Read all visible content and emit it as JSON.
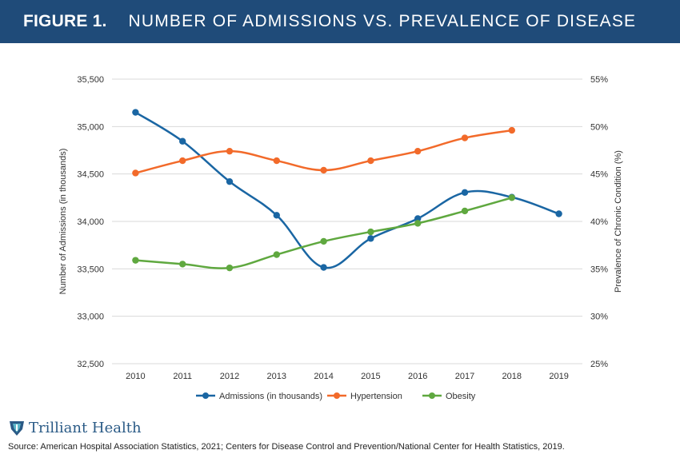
{
  "header": {
    "figure_label": "FIGURE 1.",
    "title": "NUMBER OF ADMISSIONS VS. PREVALENCE OF DISEASE"
  },
  "colors": {
    "header_bg": "#1f4b79",
    "admissions": "#1a66a3",
    "hypertension": "#f26a2a",
    "obesity": "#5fa83f",
    "logo": "#2a5a86"
  },
  "chart_data": {
    "type": "line",
    "title": "NUMBER OF ADMISSIONS VS. PREVALENCE OF DISEASE",
    "x": [
      "2010",
      "2011",
      "2012",
      "2013",
      "2014",
      "2015",
      "2016",
      "2017",
      "2018",
      "2019"
    ],
    "y_left": {
      "label": "Number of Admissions (in thousands)",
      "range": [
        32500,
        35500
      ],
      "ticks": [
        "32,500",
        "33,000",
        "33,500",
        "34,000",
        "34,500",
        "35,000",
        "35,500"
      ]
    },
    "y_right": {
      "label": "Prevalence of Chronic Condition (%)",
      "range": [
        25,
        55
      ],
      "ticks": [
        "25%",
        "30%",
        "35%",
        "40%",
        "45%",
        "50%",
        "55%"
      ]
    },
    "series": [
      {
        "name": "Admissions (in thousands)",
        "axis": "left",
        "color": "#1a66a3",
        "values": [
          35150,
          34845,
          34420,
          34065,
          33515,
          33820,
          34030,
          34305,
          34255,
          34080
        ]
      },
      {
        "name": "Hypertension",
        "axis": "right",
        "color": "#f26a2a",
        "values": [
          45.1,
          46.4,
          47.4,
          46.4,
          45.4,
          46.4,
          47.4,
          48.8,
          49.6,
          null
        ]
      },
      {
        "name": "Obesity",
        "axis": "right",
        "color": "#5fa83f",
        "values": [
          35.9,
          35.5,
          35.1,
          36.5,
          37.9,
          38.9,
          39.8,
          41.1,
          42.5,
          null
        ]
      }
    ],
    "grid": true,
    "legend_position": "bottom"
  },
  "footer": {
    "logo_text": "Trilliant Health",
    "source": "Source:  American Hospital Association Statistics, 2021; Centers for Disease Control and Prevention/National Center for Health Statistics, 2019."
  }
}
